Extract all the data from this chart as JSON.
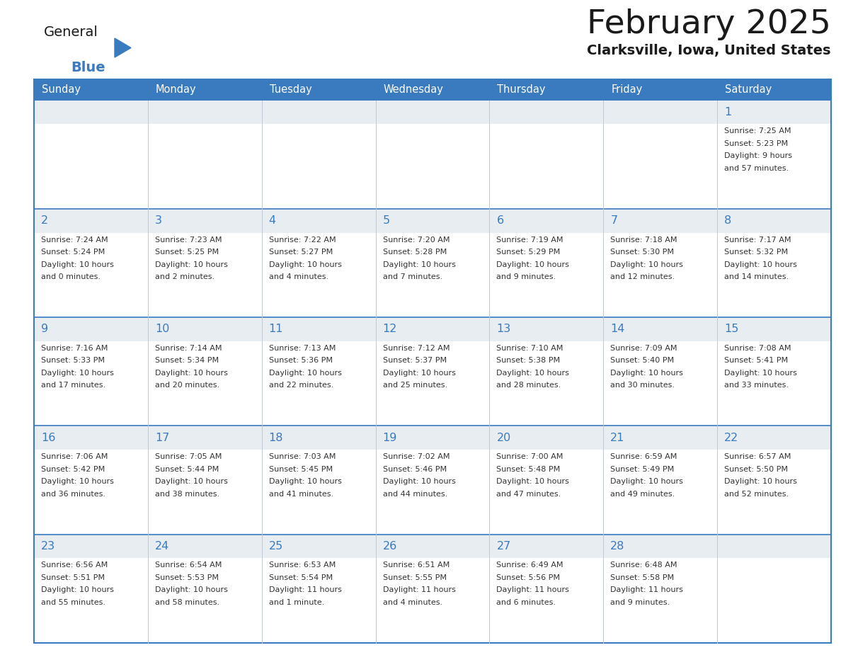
{
  "title": "February 2025",
  "subtitle": "Clarksville, Iowa, United States",
  "header_bg": "#3a7abf",
  "header_text_color": "#ffffff",
  "cell_bg_daynum": "#e8edf2",
  "cell_bg_content": "#ffffff",
  "border_color": "#3a7abf",
  "inner_border_color": "#3a7abf",
  "day_headers": [
    "Sunday",
    "Monday",
    "Tuesday",
    "Wednesday",
    "Thursday",
    "Friday",
    "Saturday"
  ],
  "title_color": "#1a1a1a",
  "subtitle_color": "#1a1a1a",
  "day_num_color": "#3a7abf",
  "cell_text_color": "#333333",
  "logo_general_color": "#1a1a1a",
  "logo_blue_color": "#3a7abf",
  "logo_triangle_color": "#3a7abf",
  "calendar_data": [
    [
      null,
      null,
      null,
      null,
      null,
      null,
      {
        "day": 1,
        "sunrise": "7:25 AM",
        "sunset": "5:23 PM",
        "daylight": "9 hours",
        "daylight2": "and 57 minutes."
      }
    ],
    [
      {
        "day": 2,
        "sunrise": "7:24 AM",
        "sunset": "5:24 PM",
        "daylight": "10 hours",
        "daylight2": "and 0 minutes."
      },
      {
        "day": 3,
        "sunrise": "7:23 AM",
        "sunset": "5:25 PM",
        "daylight": "10 hours",
        "daylight2": "and 2 minutes."
      },
      {
        "day": 4,
        "sunrise": "7:22 AM",
        "sunset": "5:27 PM",
        "daylight": "10 hours",
        "daylight2": "and 4 minutes."
      },
      {
        "day": 5,
        "sunrise": "7:20 AM",
        "sunset": "5:28 PM",
        "daylight": "10 hours",
        "daylight2": "and 7 minutes."
      },
      {
        "day": 6,
        "sunrise": "7:19 AM",
        "sunset": "5:29 PM",
        "daylight": "10 hours",
        "daylight2": "and 9 minutes."
      },
      {
        "day": 7,
        "sunrise": "7:18 AM",
        "sunset": "5:30 PM",
        "daylight": "10 hours",
        "daylight2": "and 12 minutes."
      },
      {
        "day": 8,
        "sunrise": "7:17 AM",
        "sunset": "5:32 PM",
        "daylight": "10 hours",
        "daylight2": "and 14 minutes."
      }
    ],
    [
      {
        "day": 9,
        "sunrise": "7:16 AM",
        "sunset": "5:33 PM",
        "daylight": "10 hours",
        "daylight2": "and 17 minutes."
      },
      {
        "day": 10,
        "sunrise": "7:14 AM",
        "sunset": "5:34 PM",
        "daylight": "10 hours",
        "daylight2": "and 20 minutes."
      },
      {
        "day": 11,
        "sunrise": "7:13 AM",
        "sunset": "5:36 PM",
        "daylight": "10 hours",
        "daylight2": "and 22 minutes."
      },
      {
        "day": 12,
        "sunrise": "7:12 AM",
        "sunset": "5:37 PM",
        "daylight": "10 hours",
        "daylight2": "and 25 minutes."
      },
      {
        "day": 13,
        "sunrise": "7:10 AM",
        "sunset": "5:38 PM",
        "daylight": "10 hours",
        "daylight2": "and 28 minutes."
      },
      {
        "day": 14,
        "sunrise": "7:09 AM",
        "sunset": "5:40 PM",
        "daylight": "10 hours",
        "daylight2": "and 30 minutes."
      },
      {
        "day": 15,
        "sunrise": "7:08 AM",
        "sunset": "5:41 PM",
        "daylight": "10 hours",
        "daylight2": "and 33 minutes."
      }
    ],
    [
      {
        "day": 16,
        "sunrise": "7:06 AM",
        "sunset": "5:42 PM",
        "daylight": "10 hours",
        "daylight2": "and 36 minutes."
      },
      {
        "day": 17,
        "sunrise": "7:05 AM",
        "sunset": "5:44 PM",
        "daylight": "10 hours",
        "daylight2": "and 38 minutes."
      },
      {
        "day": 18,
        "sunrise": "7:03 AM",
        "sunset": "5:45 PM",
        "daylight": "10 hours",
        "daylight2": "and 41 minutes."
      },
      {
        "day": 19,
        "sunrise": "7:02 AM",
        "sunset": "5:46 PM",
        "daylight": "10 hours",
        "daylight2": "and 44 minutes."
      },
      {
        "day": 20,
        "sunrise": "7:00 AM",
        "sunset": "5:48 PM",
        "daylight": "10 hours",
        "daylight2": "and 47 minutes."
      },
      {
        "day": 21,
        "sunrise": "6:59 AM",
        "sunset": "5:49 PM",
        "daylight": "10 hours",
        "daylight2": "and 49 minutes."
      },
      {
        "day": 22,
        "sunrise": "6:57 AM",
        "sunset": "5:50 PM",
        "daylight": "10 hours",
        "daylight2": "and 52 minutes."
      }
    ],
    [
      {
        "day": 23,
        "sunrise": "6:56 AM",
        "sunset": "5:51 PM",
        "daylight": "10 hours",
        "daylight2": "and 55 minutes."
      },
      {
        "day": 24,
        "sunrise": "6:54 AM",
        "sunset": "5:53 PM",
        "daylight": "10 hours",
        "daylight2": "and 58 minutes."
      },
      {
        "day": 25,
        "sunrise": "6:53 AM",
        "sunset": "5:54 PM",
        "daylight": "11 hours",
        "daylight2": "and 1 minute."
      },
      {
        "day": 26,
        "sunrise": "6:51 AM",
        "sunset": "5:55 PM",
        "daylight": "11 hours",
        "daylight2": "and 4 minutes."
      },
      {
        "day": 27,
        "sunrise": "6:49 AM",
        "sunset": "5:56 PM",
        "daylight": "11 hours",
        "daylight2": "and 6 minutes."
      },
      {
        "day": 28,
        "sunrise": "6:48 AM",
        "sunset": "5:58 PM",
        "daylight": "11 hours",
        "daylight2": "and 9 minutes."
      },
      null
    ]
  ]
}
